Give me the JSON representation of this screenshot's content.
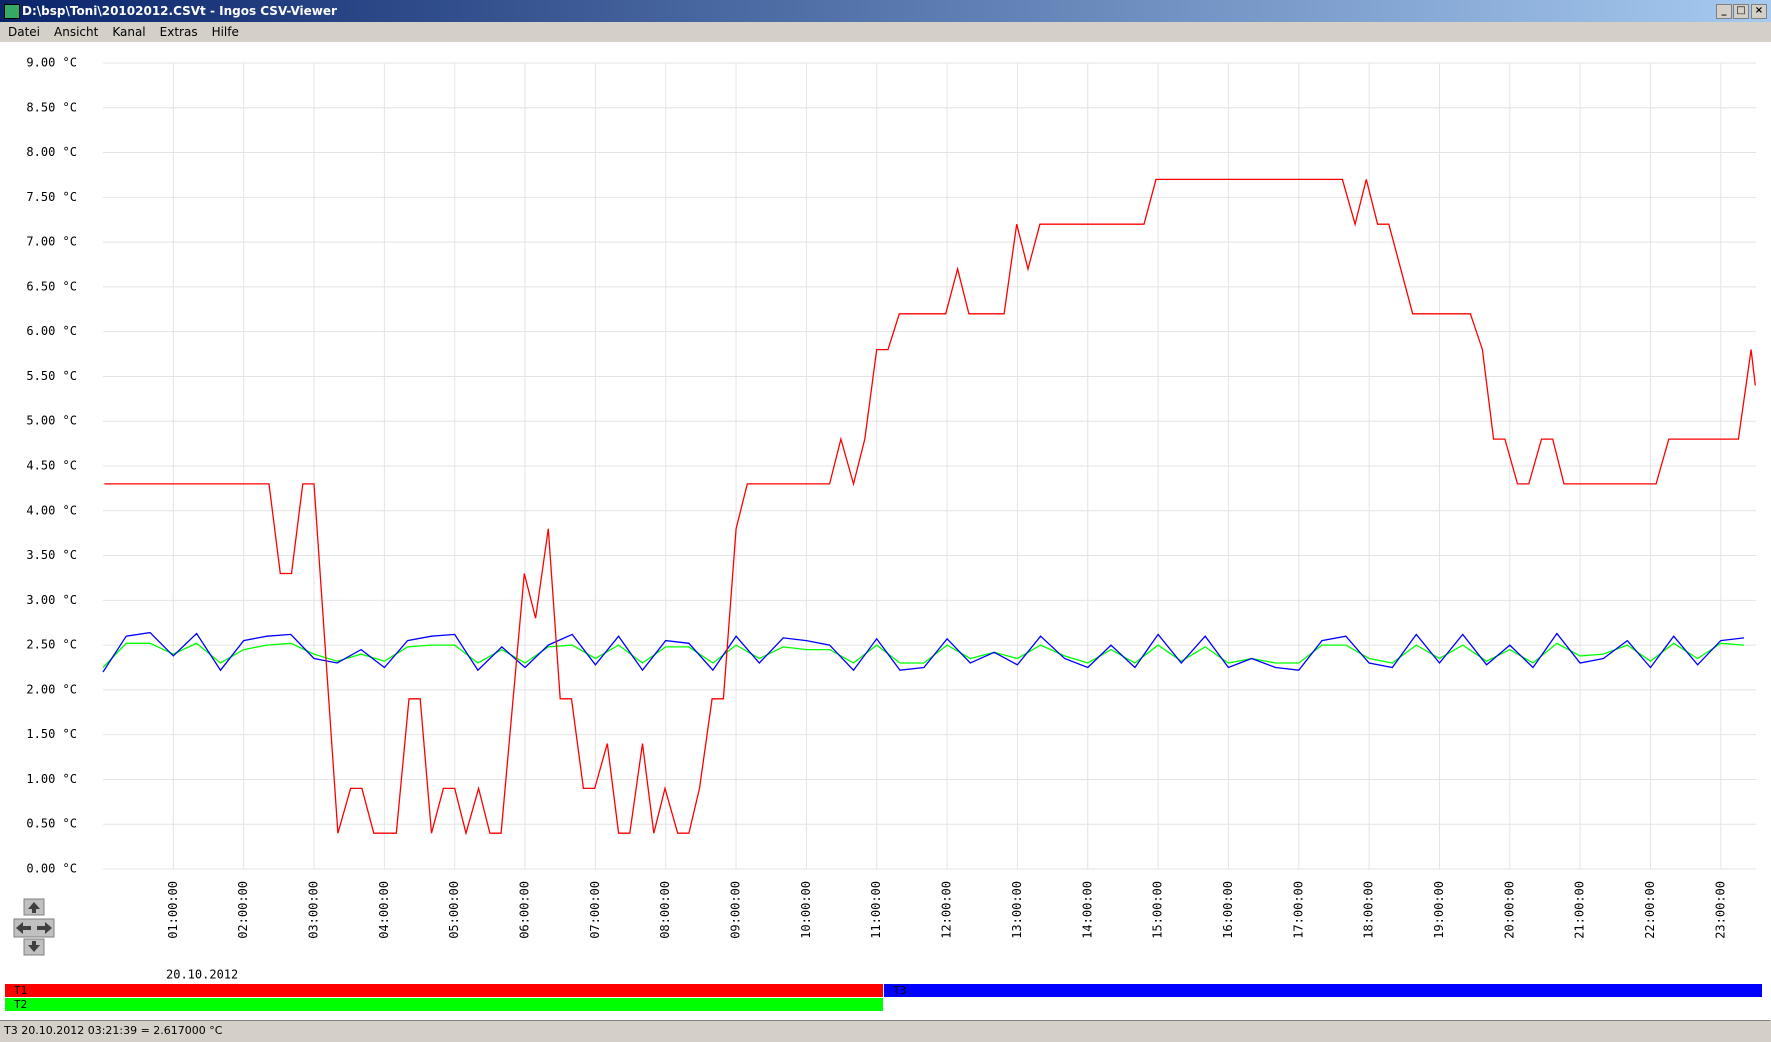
{
  "window": {
    "title": "D:\\bsp\\Toni\\20102012.CSVt - Ingos CSV-Viewer"
  },
  "menu": [
    "Datei",
    "Ansicht",
    "Kanal",
    "Extras",
    "Hilfe"
  ],
  "status": "T3 20.10.2012 03:21:39 = 2.617000 °C",
  "chart_data": {
    "type": "line",
    "date_label": "20.10.2012",
    "grid": true,
    "xlim": [
      0,
      23.5
    ],
    "ylim": [
      0,
      9
    ],
    "yticks": [
      {
        "value": 0,
        "label": "0.00 °C"
      },
      {
        "value": 0.5,
        "label": "0.50 °C"
      },
      {
        "value": 1,
        "label": "1.00 °C"
      },
      {
        "value": 1.5,
        "label": "1.50 °C"
      },
      {
        "value": 2,
        "label": "2.00 °C"
      },
      {
        "value": 2.5,
        "label": "2.50 °C"
      },
      {
        "value": 3,
        "label": "3.00 °C"
      },
      {
        "value": 3.5,
        "label": "3.50 °C"
      },
      {
        "value": 4,
        "label": "4.00 °C"
      },
      {
        "value": 4.5,
        "label": "4.50 °C"
      },
      {
        "value": 5,
        "label": "5.00 °C"
      },
      {
        "value": 5.5,
        "label": "5.50 °C"
      },
      {
        "value": 6,
        "label": "6.00 °C"
      },
      {
        "value": 6.5,
        "label": "6.50 °C"
      },
      {
        "value": 7,
        "label": "7.00 °C"
      },
      {
        "value": 7.5,
        "label": "7.50 °C"
      },
      {
        "value": 8,
        "label": "8.00 °C"
      },
      {
        "value": 8.5,
        "label": "8.50 °C"
      },
      {
        "value": 9,
        "label": "9.00 °C"
      }
    ],
    "xticks": [
      {
        "value": 1,
        "label": "01:00:00"
      },
      {
        "value": 2,
        "label": "02:00:00"
      },
      {
        "value": 3,
        "label": "03:00:00"
      },
      {
        "value": 4,
        "label": "04:00:00"
      },
      {
        "value": 5,
        "label": "05:00:00"
      },
      {
        "value": 6,
        "label": "06:00:00"
      },
      {
        "value": 7,
        "label": "07:00:00"
      },
      {
        "value": 8,
        "label": "08:00:00"
      },
      {
        "value": 9,
        "label": "09:00:00"
      },
      {
        "value": 10,
        "label": "10:00:00"
      },
      {
        "value": 11,
        "label": "11:00:00"
      },
      {
        "value": 12,
        "label": "12:00:00"
      },
      {
        "value": 13,
        "label": "13:00:00"
      },
      {
        "value": 14,
        "label": "14:00:00"
      },
      {
        "value": 15,
        "label": "15:00:00"
      },
      {
        "value": 16,
        "label": "16:00:00"
      },
      {
        "value": 17,
        "label": "17:00:00"
      },
      {
        "value": 18,
        "label": "18:00:00"
      },
      {
        "value": 19,
        "label": "19:00:00"
      },
      {
        "value": 20,
        "label": "20:00:00"
      },
      {
        "value": 21,
        "label": "21:00:00"
      },
      {
        "value": 22,
        "label": "22:00:00"
      },
      {
        "value": 23,
        "label": "23:00:00"
      }
    ],
    "series": [
      {
        "name": "T1",
        "color": "#ff0000",
        "x": [
          0.02,
          2.36,
          2.52,
          2.68,
          2.84,
          3.0,
          3.34,
          3.52,
          3.68,
          3.85,
          4.17,
          4.35,
          4.51,
          4.67,
          4.84,
          5.0,
          5.16,
          5.34,
          5.5,
          5.66,
          5.99,
          6.15,
          6.33,
          6.5,
          6.66,
          6.83,
          6.99,
          7.17,
          7.33,
          7.49,
          7.67,
          7.83,
          7.99,
          8.17,
          8.33,
          8.48,
          8.66,
          8.82,
          9.0,
          9.16,
          10.33,
          10.49,
          10.67,
          10.83,
          11.0,
          11.16,
          11.32,
          11.98,
          12.15,
          12.31,
          12.81,
          12.99,
          13.15,
          13.32,
          14.8,
          14.97,
          17.62,
          17.8,
          17.96,
          18.12,
          18.28,
          18.62,
          19.44,
          19.61,
          19.77,
          19.93,
          20.11,
          20.27,
          20.45,
          20.61,
          20.77,
          22.08,
          22.26,
          23.25,
          23.43,
          23.49
        ],
        "values": [
          4.3,
          4.3,
          3.3,
          3.3,
          4.3,
          4.3,
          0.4,
          0.9,
          0.9,
          0.4,
          0.4,
          1.9,
          1.9,
          0.4,
          0.9,
          0.9,
          0.4,
          0.9,
          0.4,
          0.4,
          3.3,
          2.8,
          3.8,
          1.9,
          1.9,
          0.9,
          0.9,
          1.4,
          0.4,
          0.4,
          1.4,
          0.4,
          0.9,
          0.4,
          0.4,
          0.9,
          1.9,
          1.9,
          3.8,
          4.3,
          4.3,
          4.8,
          4.3,
          4.8,
          5.8,
          5.8,
          6.2,
          6.2,
          6.7,
          6.2,
          6.2,
          7.2,
          6.7,
          7.2,
          7.2,
          7.7,
          7.7,
          7.2,
          7.7,
          7.2,
          7.2,
          6.2,
          6.2,
          5.8,
          4.8,
          4.8,
          4.3,
          4.3,
          4.8,
          4.8,
          4.3,
          4.3,
          4.8,
          4.8,
          5.8,
          5.4
        ]
      },
      {
        "name": "T2",
        "color": "#00ff00",
        "x": [
          0,
          0.33,
          0.67,
          1,
          1.33,
          1.67,
          2,
          2.33,
          2.67,
          3,
          3.33,
          3.67,
          4,
          4.33,
          4.67,
          5,
          5.33,
          5.67,
          6,
          6.33,
          6.67,
          7,
          7.33,
          7.67,
          8,
          8.33,
          8.67,
          9,
          9.33,
          9.67,
          10,
          10.33,
          10.67,
          11,
          11.33,
          11.67,
          12,
          12.33,
          12.67,
          13,
          13.33,
          13.67,
          14,
          14.33,
          14.67,
          15,
          15.33,
          15.67,
          16,
          16.33,
          16.67,
          17,
          17.33,
          17.67,
          18,
          18.33,
          18.67,
          19,
          19.33,
          19.67,
          20,
          20.33,
          20.67,
          21,
          21.33,
          21.67,
          22,
          22.33,
          22.67,
          23,
          23.33
        ],
        "values": [
          2.25,
          2.52,
          2.52,
          2.4,
          2.52,
          2.3,
          2.45,
          2.5,
          2.52,
          2.4,
          2.32,
          2.4,
          2.32,
          2.48,
          2.5,
          2.5,
          2.3,
          2.45,
          2.3,
          2.48,
          2.5,
          2.35,
          2.5,
          2.3,
          2.48,
          2.48,
          2.3,
          2.5,
          2.35,
          2.48,
          2.45,
          2.45,
          2.3,
          2.5,
          2.3,
          2.3,
          2.5,
          2.35,
          2.42,
          2.35,
          2.5,
          2.38,
          2.3,
          2.45,
          2.3,
          2.5,
          2.32,
          2.48,
          2.3,
          2.35,
          2.3,
          2.3,
          2.5,
          2.5,
          2.35,
          2.3,
          2.5,
          2.35,
          2.5,
          2.32,
          2.45,
          2.3,
          2.52,
          2.38,
          2.4,
          2.5,
          2.32,
          2.52,
          2.35,
          2.52,
          2.5
        ]
      },
      {
        "name": "T3",
        "color": "#0000ff",
        "x": [
          0,
          0.33,
          0.67,
          1,
          1.33,
          1.67,
          2,
          2.33,
          2.67,
          3,
          3.33,
          3.67,
          4,
          4.33,
          4.67,
          5,
          5.33,
          5.67,
          6,
          6.33,
          6.67,
          7,
          7.33,
          7.67,
          8,
          8.33,
          8.67,
          9,
          9.33,
          9.67,
          10,
          10.33,
          10.67,
          11,
          11.33,
          11.67,
          12,
          12.33,
          12.67,
          13,
          13.33,
          13.67,
          14,
          14.33,
          14.67,
          15,
          15.33,
          15.67,
          16,
          16.33,
          16.67,
          17,
          17.33,
          17.67,
          18,
          18.33,
          18.67,
          19,
          19.33,
          19.67,
          20,
          20.33,
          20.67,
          21,
          21.33,
          21.67,
          22,
          22.33,
          22.67,
          23,
          23.33
        ],
        "values": [
          2.2,
          2.6,
          2.64,
          2.38,
          2.63,
          2.22,
          2.55,
          2.6,
          2.62,
          2.35,
          2.3,
          2.45,
          2.25,
          2.55,
          2.6,
          2.62,
          2.22,
          2.48,
          2.25,
          2.5,
          2.62,
          2.28,
          2.6,
          2.22,
          2.55,
          2.52,
          2.22,
          2.6,
          2.3,
          2.58,
          2.55,
          2.5,
          2.22,
          2.57,
          2.22,
          2.25,
          2.57,
          2.3,
          2.42,
          2.28,
          2.6,
          2.35,
          2.25,
          2.5,
          2.25,
          2.62,
          2.3,
          2.6,
          2.25,
          2.35,
          2.25,
          2.22,
          2.55,
          2.6,
          2.3,
          2.25,
          2.62,
          2.3,
          2.62,
          2.28,
          2.5,
          2.25,
          2.63,
          2.3,
          2.35,
          2.55,
          2.25,
          2.6,
          2.28,
          2.55,
          2.58
        ]
      }
    ]
  }
}
